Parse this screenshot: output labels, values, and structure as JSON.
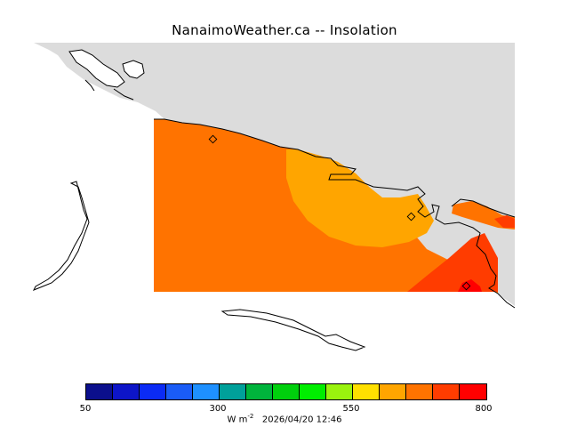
{
  "title": "NanaimoWeather.ca -- Insolation",
  "legend": {
    "colors": [
      "#0b0f8c",
      "#0d15c8",
      "#0b2bf5",
      "#1a5cf6",
      "#1e90ff",
      "#00a09a",
      "#00b43c",
      "#00d00d",
      "#00ee00",
      "#9af30e",
      "#ffe000",
      "#ffa500",
      "#ff7300",
      "#ff3c00",
      "#ff0000"
    ],
    "ticks": [
      "50",
      "300",
      "550",
      "800"
    ],
    "unit_prefix": "W m",
    "unit_exp": "-2",
    "timestamp": "2026/04/20 12:46"
  },
  "map": {
    "land_color": "#dcdcdc",
    "water_color": "#ffffff",
    "field_colors": {
      "high": "#ffa500",
      "mid": "#ff7300",
      "peak": "#ff3c00",
      "max": "#ff0000"
    },
    "station_markers": 3
  }
}
